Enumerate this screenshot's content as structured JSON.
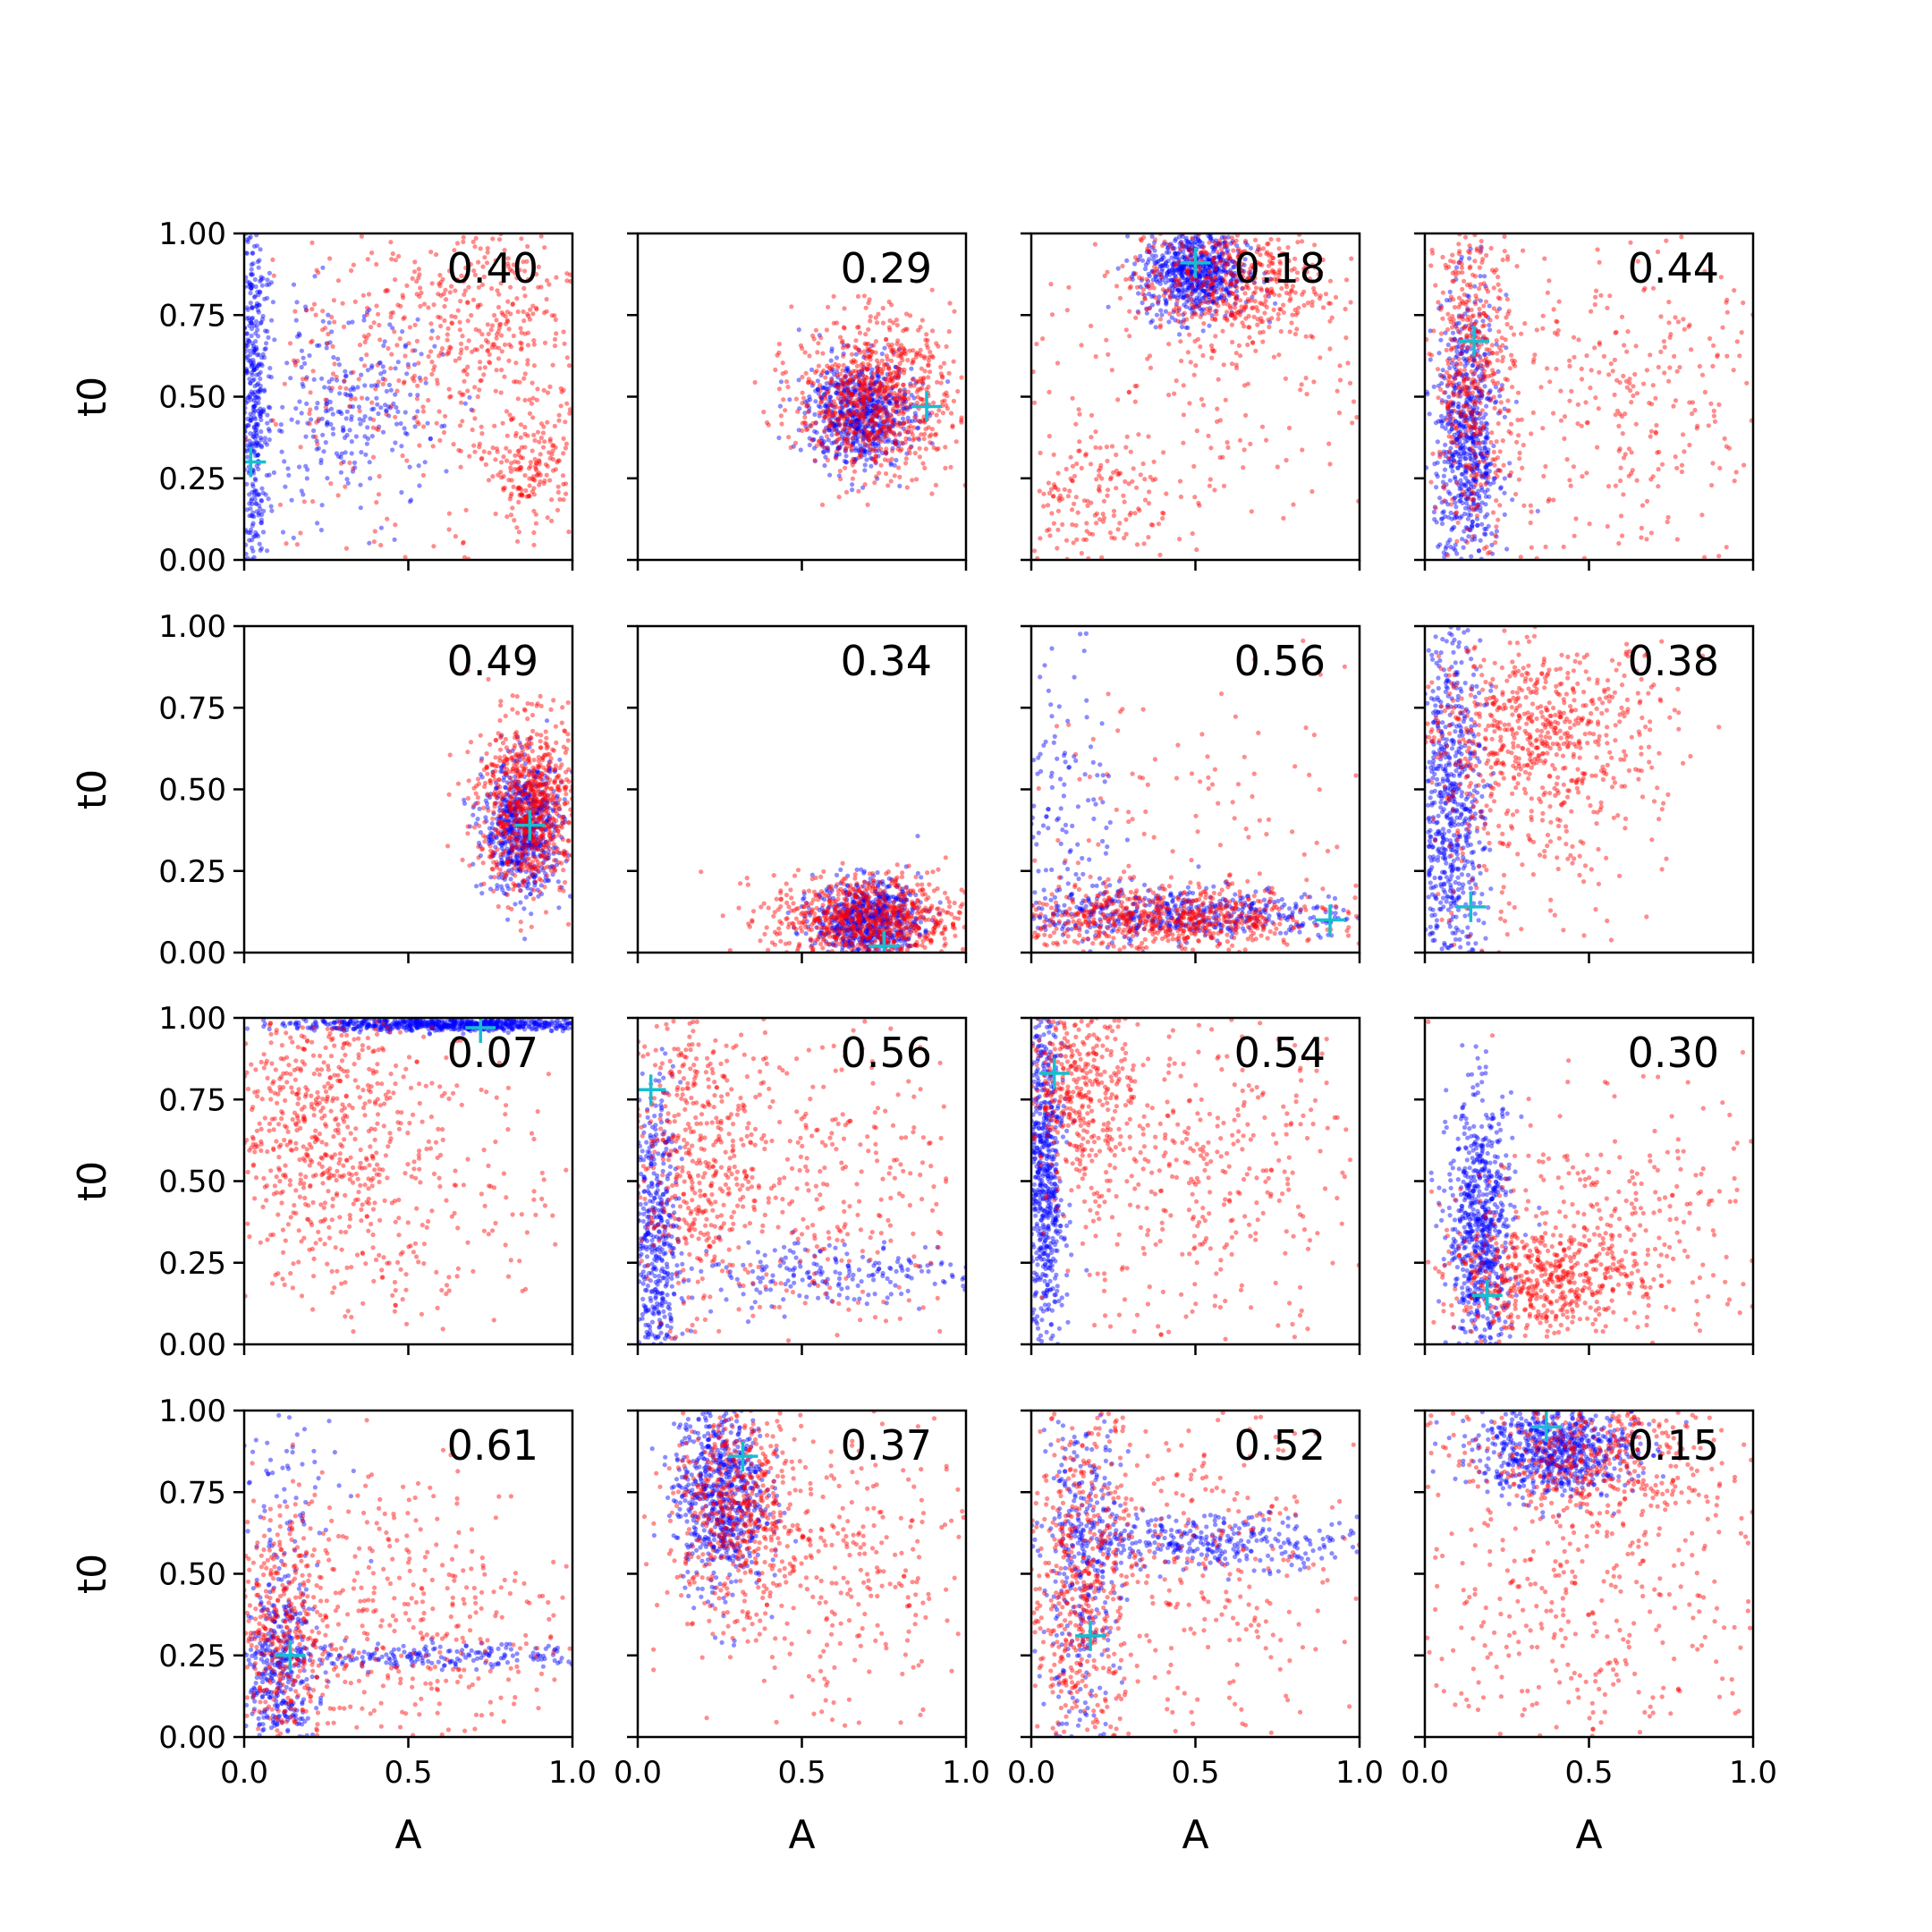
{
  "colors": {
    "series_a": "#ff0000",
    "series_b": "#0000ff",
    "marker": "#17becf",
    "axes": "#000000"
  },
  "chart_data": {
    "type": "scatter",
    "grid": false,
    "legend": "none",
    "layout": "4x4 small multiples, shared x and y axes",
    "xlabel": "A",
    "ylabel": "t0",
    "xlim": [
      0.0,
      1.0
    ],
    "ylim": [
      0.0,
      1.0
    ],
    "xticks": [
      "0.0",
      "0.5",
      "1.0"
    ],
    "yticks": [
      "0.00",
      "0.25",
      "0.50",
      "0.75",
      "1.00"
    ],
    "series_colors": [
      "red",
      "blue"
    ],
    "marker_symbol": "+",
    "panels": [
      {
        "label": "0.40",
        "marker": [
          0.02,
          0.3
        ],
        "red": [
          {
            "c": [
              0.75,
              0.75
            ],
            "s": [
              0.22,
              0.18
            ],
            "w": 0.45
          },
          {
            "c": [
              0.88,
              0.28
            ],
            "s": [
              0.06,
              0.08
            ],
            "w": 0.2
          },
          {
            "c": [
              0.5,
              0.5
            ],
            "s": [
              0.3,
              0.3
            ],
            "w": 0.35
          }
        ],
        "blue": [
          {
            "c": [
              0.03,
              0.5
            ],
            "s": [
              0.02,
              0.3
            ],
            "w": 0.6
          },
          {
            "c": [
              0.3,
              0.45
            ],
            "s": [
              0.15,
              0.15
            ],
            "w": 0.4
          }
        ]
      },
      {
        "label": "0.29",
        "marker": [
          0.88,
          0.47
        ],
        "red": [
          {
            "c": [
              0.72,
              0.5
            ],
            "s": [
              0.12,
              0.12
            ],
            "w": 1.0
          }
        ],
        "blue": [
          {
            "c": [
              0.68,
              0.45
            ],
            "s": [
              0.08,
              0.08
            ],
            "w": 1.0
          }
        ]
      },
      {
        "label": "0.18",
        "marker": [
          0.5,
          0.91
        ],
        "red": [
          {
            "c": [
              0.6,
              0.85
            ],
            "s": [
              0.15,
              0.1
            ],
            "w": 0.6
          },
          {
            "c": [
              0.2,
              0.2
            ],
            "s": [
              0.12,
              0.1
            ],
            "w": 0.2
          },
          {
            "c": [
              0.5,
              0.5
            ],
            "s": [
              0.3,
              0.25
            ],
            "w": 0.2
          }
        ],
        "blue": [
          {
            "c": [
              0.5,
              0.88
            ],
            "s": [
              0.08,
              0.07
            ],
            "w": 1.0
          }
        ]
      },
      {
        "label": "0.44",
        "marker": [
          0.15,
          0.67
        ],
        "red": [
          {
            "c": [
              0.15,
              0.6
            ],
            "s": [
              0.06,
              0.25
            ],
            "w": 0.6
          },
          {
            "c": [
              0.6,
              0.45
            ],
            "s": [
              0.25,
              0.25
            ],
            "w": 0.4
          }
        ],
        "blue": [
          {
            "c": [
              0.13,
              0.35
            ],
            "s": [
              0.05,
              0.22
            ],
            "w": 1.0
          }
        ]
      },
      {
        "label": "0.49",
        "marker": [
          0.87,
          0.39
        ],
        "red": [
          {
            "c": [
              0.87,
              0.45
            ],
            "s": [
              0.08,
              0.13
            ],
            "w": 1.0
          }
        ],
        "blue": [
          {
            "c": [
              0.85,
              0.38
            ],
            "s": [
              0.06,
              0.1
            ],
            "w": 1.0
          }
        ]
      },
      {
        "label": "0.34",
        "marker": [
          0.75,
          0.02
        ],
        "red": [
          {
            "c": [
              0.7,
              0.1
            ],
            "s": [
              0.15,
              0.07
            ],
            "w": 1.0
          }
        ],
        "blue": [
          {
            "c": [
              0.7,
              0.1
            ],
            "s": [
              0.08,
              0.06
            ],
            "w": 1.0
          }
        ]
      },
      {
        "label": "0.56",
        "marker": [
          0.91,
          0.1
        ],
        "red": [
          {
            "c": [
              0.4,
              0.1
            ],
            "s": [
              0.25,
              0.05
            ],
            "w": 0.85
          },
          {
            "c": [
              0.5,
              0.4
            ],
            "s": [
              0.3,
              0.25
            ],
            "w": 0.15
          }
        ],
        "blue": [
          {
            "c": [
              0.4,
              0.12
            ],
            "s": [
              0.3,
              0.04
            ],
            "w": 0.8
          },
          {
            "c": [
              0.1,
              0.4
            ],
            "s": [
              0.08,
              0.3
            ],
            "w": 0.2
          }
        ]
      },
      {
        "label": "0.38",
        "marker": [
          0.14,
          0.14
        ],
        "red": [
          {
            "c": [
              0.35,
              0.7
            ],
            "s": [
              0.2,
              0.12
            ],
            "w": 0.7
          },
          {
            "c": [
              0.3,
              0.4
            ],
            "s": [
              0.2,
              0.2
            ],
            "w": 0.3
          }
        ],
        "blue": [
          {
            "c": [
              0.08,
              0.4
            ],
            "s": [
              0.05,
              0.3
            ],
            "w": 1.0
          }
        ]
      },
      {
        "label": "0.07",
        "marker": [
          0.72,
          0.97
        ],
        "red": [
          {
            "c": [
              0.2,
              0.7
            ],
            "s": [
              0.15,
              0.2
            ],
            "w": 0.6
          },
          {
            "c": [
              0.45,
              0.5
            ],
            "s": [
              0.25,
              0.25
            ],
            "w": 0.4
          }
        ],
        "blue": [
          {
            "c": [
              0.65,
              0.98
            ],
            "s": [
              0.25,
              0.01
            ],
            "w": 1.0
          }
        ]
      },
      {
        "label": "0.56",
        "marker": [
          0.04,
          0.78
        ],
        "red": [
          {
            "c": [
              0.15,
              0.6
            ],
            "s": [
              0.1,
              0.25
            ],
            "w": 0.5
          },
          {
            "c": [
              0.5,
              0.5
            ],
            "s": [
              0.25,
              0.28
            ],
            "w": 0.5
          }
        ],
        "blue": [
          {
            "c": [
              0.05,
              0.3
            ],
            "s": [
              0.04,
              0.25
            ],
            "w": 0.7
          },
          {
            "c": [
              0.6,
              0.22
            ],
            "s": [
              0.25,
              0.05
            ],
            "w": 0.3
          }
        ]
      },
      {
        "label": "0.54",
        "marker": [
          0.07,
          0.83
        ],
        "red": [
          {
            "c": [
              0.15,
              0.8
            ],
            "s": [
              0.08,
              0.15
            ],
            "w": 0.5
          },
          {
            "c": [
              0.5,
              0.5
            ],
            "s": [
              0.25,
              0.25
            ],
            "w": 0.5
          }
        ],
        "blue": [
          {
            "c": [
              0.04,
              0.5
            ],
            "s": [
              0.03,
              0.3
            ],
            "w": 1.0
          }
        ]
      },
      {
        "label": "0.30",
        "marker": [
          0.19,
          0.15
        ],
        "red": [
          {
            "c": [
              0.35,
              0.2
            ],
            "s": [
              0.15,
              0.08
            ],
            "w": 0.6
          },
          {
            "c": [
              0.6,
              0.35
            ],
            "s": [
              0.25,
              0.2
            ],
            "w": 0.4
          }
        ],
        "blue": [
          {
            "c": [
              0.17,
              0.35
            ],
            "s": [
              0.05,
              0.2
            ],
            "w": 1.0
          }
        ]
      },
      {
        "label": "0.61",
        "marker": [
          0.14,
          0.25
        ],
        "red": [
          {
            "c": [
              0.1,
              0.3
            ],
            "s": [
              0.08,
              0.2
            ],
            "w": 0.5
          },
          {
            "c": [
              0.5,
              0.35
            ],
            "s": [
              0.25,
              0.25
            ],
            "w": 0.5
          }
        ],
        "blue": [
          {
            "c": [
              0.1,
              0.2
            ],
            "s": [
              0.06,
              0.15
            ],
            "w": 0.6
          },
          {
            "c": [
              0.6,
              0.25
            ],
            "s": [
              0.25,
              0.02
            ],
            "w": 0.3
          },
          {
            "c": [
              0.15,
              0.8
            ],
            "s": [
              0.1,
              0.15
            ],
            "w": 0.1
          }
        ]
      },
      {
        "label": "0.37",
        "marker": [
          0.32,
          0.86
        ],
        "red": [
          {
            "c": [
              0.3,
              0.7
            ],
            "s": [
              0.1,
              0.15
            ],
            "w": 0.6
          },
          {
            "c": [
              0.6,
              0.5
            ],
            "s": [
              0.2,
              0.25
            ],
            "w": 0.4
          }
        ],
        "blue": [
          {
            "c": [
              0.25,
              0.75
            ],
            "s": [
              0.07,
              0.15
            ],
            "w": 1.0
          }
        ]
      },
      {
        "label": "0.52",
        "marker": [
          0.18,
          0.31
        ],
        "red": [
          {
            "c": [
              0.15,
              0.45
            ],
            "s": [
              0.08,
              0.28
            ],
            "w": 0.6
          },
          {
            "c": [
              0.5,
              0.5
            ],
            "s": [
              0.25,
              0.28
            ],
            "w": 0.4
          }
        ],
        "blue": [
          {
            "c": [
              0.55,
              0.6
            ],
            "s": [
              0.25,
              0.04
            ],
            "w": 0.5
          },
          {
            "c": [
              0.15,
              0.5
            ],
            "s": [
              0.06,
              0.28
            ],
            "w": 0.5
          }
        ]
      },
      {
        "label": "0.15",
        "marker": [
          0.37,
          0.95
        ],
        "red": [
          {
            "c": [
              0.5,
              0.85
            ],
            "s": [
              0.2,
              0.1
            ],
            "w": 0.5
          },
          {
            "c": [
              0.5,
              0.45
            ],
            "s": [
              0.28,
              0.28
            ],
            "w": 0.5
          }
        ],
        "blue": [
          {
            "c": [
              0.4,
              0.88
            ],
            "s": [
              0.12,
              0.07
            ],
            "w": 1.0
          }
        ]
      }
    ]
  }
}
